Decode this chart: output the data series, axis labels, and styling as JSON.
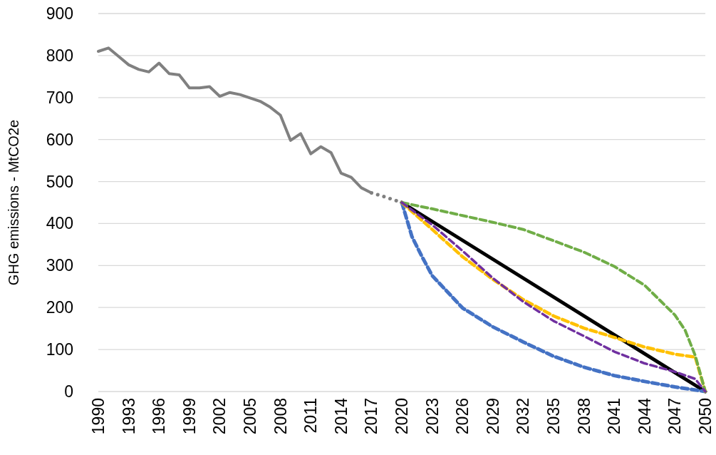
{
  "chart_data": {
    "type": "line",
    "ylabel": "GHG emissions - MtCO2e",
    "xlim": [
      1990,
      2050
    ],
    "xticks": [
      1990,
      1993,
      1996,
      1999,
      2002,
      2005,
      2008,
      2011,
      2014,
      2017,
      2020,
      2023,
      2026,
      2029,
      2032,
      2035,
      2038,
      2041,
      2044,
      2047,
      2050
    ],
    "ylim": [
      0,
      900
    ],
    "yticks": [
      0,
      100,
      200,
      300,
      400,
      500,
      600,
      700,
      800,
      900
    ],
    "grid": "y",
    "marker": "none",
    "series": [
      {
        "color": "#808080",
        "line_style": "solid",
        "x": [
          1990,
          1991,
          1992,
          1993,
          1994,
          1995,
          1996,
          1997,
          1998,
          1999,
          2000,
          2001,
          2002,
          2003,
          2004,
          2005,
          2006,
          2007,
          2008,
          2009,
          2010,
          2011,
          2012,
          2013,
          2014,
          2015,
          2016,
          2017
        ],
        "values": [
          810,
          818,
          798,
          778,
          767,
          761,
          782,
          757,
          754,
          723,
          723,
          726,
          703,
          712,
          707,
          699,
          691,
          677,
          658,
          598,
          614,
          566,
          583,
          569,
          520,
          510,
          485,
          473
        ]
      },
      {
        "color": "#808080",
        "line_style": "dotted",
        "x": [
          2017,
          2018,
          2019,
          2020
        ],
        "values": [
          473,
          466,
          458,
          450
        ]
      },
      {
        "color": "#000000",
        "line_style": "solid",
        "x": [
          2020,
          2050
        ],
        "values": [
          450,
          0
        ]
      },
      {
        "color": "#4472c4",
        "line_style": "dashed",
        "x": [
          2020,
          2021,
          2022,
          2023,
          2026,
          2029,
          2032,
          2035,
          2038,
          2041,
          2044,
          2047,
          2050
        ],
        "values": [
          450,
          369,
          321,
          276,
          199,
          154,
          118,
          84,
          58,
          38,
          24,
          11,
          0
        ]
      },
      {
        "color": "#ffc000",
        "line_style": "dashed",
        "x": [
          2020,
          2023,
          2026,
          2029,
          2032,
          2035,
          2038,
          2041,
          2044,
          2047,
          2049,
          2050
        ],
        "values": [
          450,
          386,
          321,
          267,
          219,
          180,
          151,
          129,
          106,
          89,
          82,
          0
        ]
      },
      {
        "color": "#70ad47",
        "line_style": "dashed",
        "x": [
          2020,
          2023,
          2026,
          2029,
          2032,
          2035,
          2038,
          2041,
          2044,
          2047,
          2048,
          2049,
          2050
        ],
        "values": [
          450,
          435,
          419,
          403,
          386,
          359,
          332,
          298,
          253,
          182,
          146,
          86,
          0
        ]
      },
      {
        "color": "#7030a0",
        "line_style": "dashed",
        "x": [
          2020,
          2023,
          2026,
          2029,
          2032,
          2035,
          2038,
          2041,
          2044,
          2047,
          2049,
          2050
        ],
        "values": [
          450,
          397,
          335,
          270,
          214,
          168,
          132,
          95,
          67,
          47,
          30,
          0
        ]
      }
    ]
  }
}
